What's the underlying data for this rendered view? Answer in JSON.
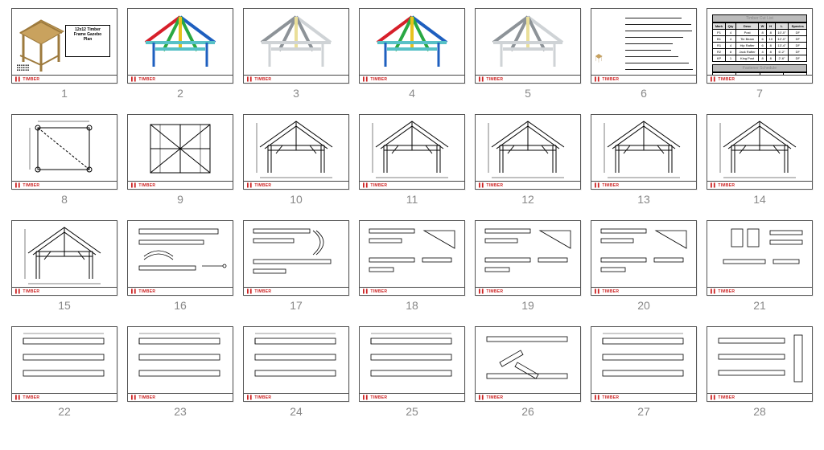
{
  "page_count": 28,
  "title_block": {
    "line1": "12x12 Timber",
    "line2": "Frame Gazebo",
    "line3": "Plan"
  },
  "footer_brand": "TIMBER",
  "colors": {
    "wood": "#c9a25e",
    "wood_dk": "#9d7a3d",
    "red": "#d71f2a",
    "blue": "#1e5fbf",
    "green": "#2aa843",
    "yellow": "#e8c21c",
    "cyan": "#57c1c7",
    "gray": "#cfd3d6",
    "gray_dk": "#8d9398"
  },
  "table7": {
    "title": "Timber Cut List",
    "headers": [
      "Mark",
      "Qty",
      "Desc",
      "W",
      "H",
      "L",
      "Species"
    ],
    "rows": [
      [
        "P1",
        "4",
        "Post",
        "8",
        "8",
        "10'-0\"",
        "DF"
      ],
      [
        "B1",
        "4",
        "Tie Beam",
        "6",
        "10",
        "12'-0\"",
        "DF"
      ],
      [
        "R1",
        "4",
        "Hip Rafter",
        "6",
        "8",
        "13'-4\"",
        "DF"
      ],
      [
        "R2",
        "8",
        "Jack Rafter",
        "4",
        "8",
        "6'-2\"",
        "DF"
      ],
      [
        "KP",
        "1",
        "King Post",
        "8",
        "8",
        "2'-6\"",
        "DF"
      ]
    ],
    "band": "Fastener Schedule"
  },
  "pages": [
    {
      "n": 1,
      "kind": "cover",
      "has_foot": true
    },
    {
      "n": 2,
      "kind": "iso_color",
      "tone": "mix",
      "has_foot": true
    },
    {
      "n": 3,
      "kind": "iso_color",
      "tone": "gray",
      "has_foot": true
    },
    {
      "n": 4,
      "kind": "iso_color",
      "tone": "mix",
      "has_foot": true
    },
    {
      "n": 5,
      "kind": "iso_color",
      "tone": "gray",
      "has_foot": true
    },
    {
      "n": 6,
      "kind": "notes",
      "has_foot": true
    },
    {
      "n": 7,
      "kind": "table",
      "has_foot": true
    },
    {
      "n": 8,
      "kind": "plan_square",
      "has_foot": true
    },
    {
      "n": 9,
      "kind": "plan_cross",
      "has_foot": true
    },
    {
      "n": 10,
      "kind": "elev",
      "has_foot": true
    },
    {
      "n": 11,
      "kind": "elev",
      "has_foot": true
    },
    {
      "n": 12,
      "kind": "elev",
      "has_foot": true
    },
    {
      "n": 13,
      "kind": "elev",
      "has_foot": true
    },
    {
      "n": 14,
      "kind": "elev",
      "has_foot": true
    },
    {
      "n": 15,
      "kind": "elev",
      "has_foot": true
    },
    {
      "n": 16,
      "kind": "details_a",
      "has_foot": true
    },
    {
      "n": 17,
      "kind": "details_b",
      "has_foot": true
    },
    {
      "n": 18,
      "kind": "details_c",
      "has_foot": true
    },
    {
      "n": 19,
      "kind": "details_c",
      "has_foot": true
    },
    {
      "n": 20,
      "kind": "details_c",
      "has_foot": true
    },
    {
      "n": 21,
      "kind": "details_d",
      "has_foot": true
    },
    {
      "n": 22,
      "kind": "members",
      "has_foot": true
    },
    {
      "n": 23,
      "kind": "members",
      "has_foot": true
    },
    {
      "n": 24,
      "kind": "members",
      "has_foot": true
    },
    {
      "n": 25,
      "kind": "members",
      "has_foot": true
    },
    {
      "n": 26,
      "kind": "members_angled",
      "has_foot": true
    },
    {
      "n": 27,
      "kind": "members",
      "has_foot": true
    },
    {
      "n": 28,
      "kind": "members_col",
      "has_foot": true
    }
  ]
}
